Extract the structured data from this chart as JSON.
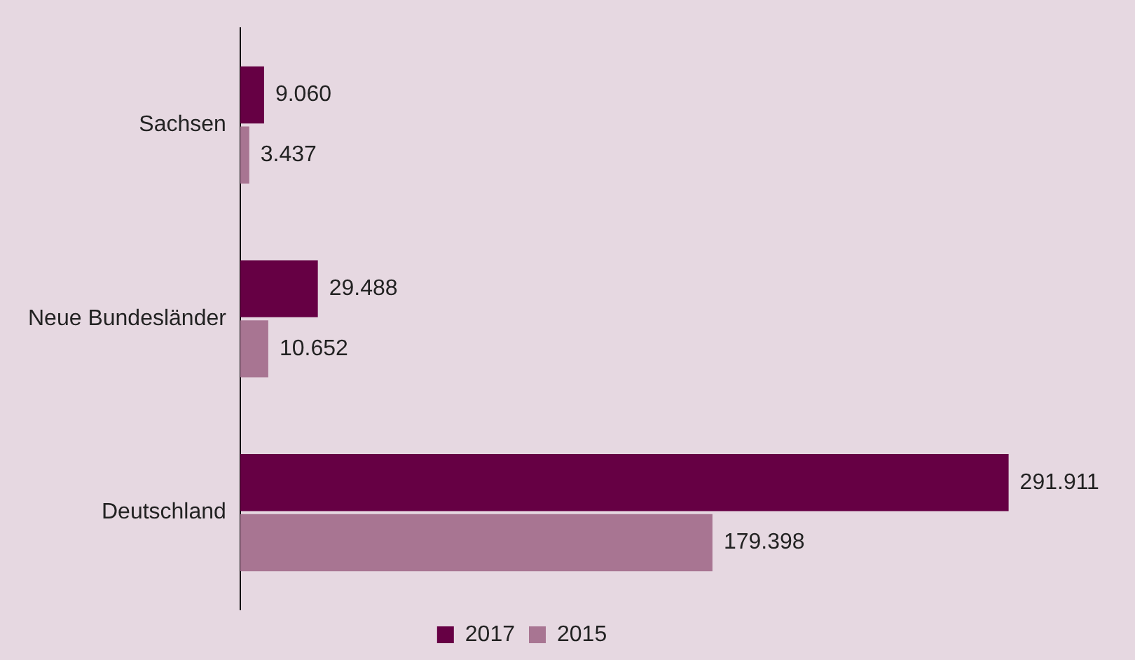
{
  "chart_data": {
    "type": "bar",
    "orientation": "horizontal",
    "categories": [
      "Sachsen",
      "Neue Bundesländer",
      "Deutschland"
    ],
    "series": [
      {
        "name": "2017",
        "color": "#660044",
        "values": [
          9060,
          29488,
          291911
        ],
        "value_labels": [
          "9.060",
          "29.488",
          "291.911"
        ]
      },
      {
        "name": "2015",
        "color": "#a87592",
        "values": [
          3437,
          10652,
          179398
        ],
        "value_labels": [
          "3.437",
          "10.652",
          "179.398"
        ]
      }
    ],
    "legend": "bottom",
    "grid": false
  }
}
